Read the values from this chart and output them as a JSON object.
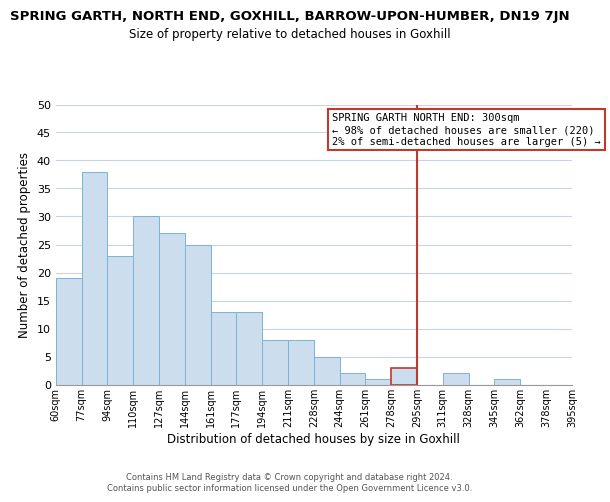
{
  "title": "SPRING GARTH, NORTH END, GOXHILL, BARROW-UPON-HUMBER, DN19 7JN",
  "subtitle": "Size of property relative to detached houses in Goxhill",
  "xlabel": "Distribution of detached houses by size in Goxhill",
  "ylabel": "Number of detached properties",
  "bar_labels": [
    "60sqm",
    "77sqm",
    "94sqm",
    "110sqm",
    "127sqm",
    "144sqm",
    "161sqm",
    "177sqm",
    "194sqm",
    "211sqm",
    "228sqm",
    "244sqm",
    "261sqm",
    "278sqm",
    "295sqm",
    "311sqm",
    "328sqm",
    "345sqm",
    "362sqm",
    "378sqm",
    "395sqm"
  ],
  "bar_values": [
    19,
    38,
    23,
    30,
    27,
    25,
    13,
    13,
    8,
    8,
    5,
    2,
    1,
    3,
    0,
    2,
    0,
    1,
    0,
    0
  ],
  "bar_color": "#ccdded",
  "bar_edge_color": "#7ab4d4",
  "highlight_bar_index": 13,
  "highlight_bar_color": "#ccdded",
  "highlight_bar_edge_color": "#c0392b",
  "vline_index": 14,
  "vline_color": "#c0392b",
  "ylim": [
    0,
    50
  ],
  "yticks": [
    0,
    5,
    10,
    15,
    20,
    25,
    30,
    35,
    40,
    45,
    50
  ],
  "annotation_title": "SPRING GARTH NORTH END: 300sqm",
  "annotation_line1": "← 98% of detached houses are smaller (220)",
  "annotation_line2": "2% of semi-detached houses are larger (5) →",
  "annotation_box_color": "#ffffff",
  "annotation_box_edge_color": "#c0392b",
  "footer_line1": "Contains HM Land Registry data © Crown copyright and database right 2024.",
  "footer_line2": "Contains public sector information licensed under the Open Government Licence v3.0.",
  "background_color": "#ffffff",
  "grid_color": "#c8d4e4",
  "title_fontsize": 9.5,
  "subtitle_fontsize": 8.5
}
